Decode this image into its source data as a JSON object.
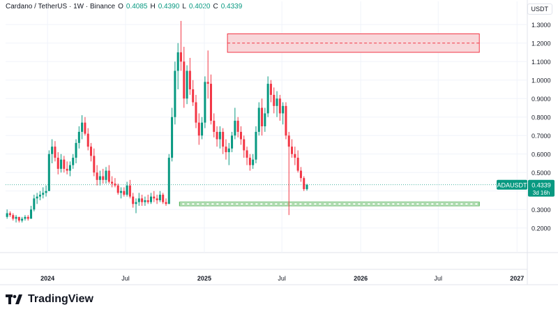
{
  "header": {
    "symbol": "Cardano / TetherUS · 1W · Binance",
    "open_label": "O",
    "open": "0.4085",
    "high_label": "H",
    "high": "0.4390",
    "low_label": "L",
    "low": "0.4020",
    "close_label": "C",
    "close": "0.4339"
  },
  "currency": "USDT",
  "price_tag": {
    "symbol": "ADAUSDT",
    "price": "0.4339",
    "countdown": "3d 16h"
  },
  "brand": "TradingView",
  "colors": {
    "up": "#089981",
    "down": "#f23645",
    "resistance_fill": "#f8d7da",
    "resistance_stroke": "#f23645",
    "support_fill": "#e6f4e6",
    "support_stroke": "#4caf50",
    "grid": "#f0f3fa",
    "axis_text": "#131722"
  },
  "chart_data": {
    "type": "candlestick",
    "y_axis": {
      "ticks": [
        "1.3000",
        "1.2000",
        "1.1000",
        "1.0000",
        "0.9000",
        "0.8000",
        "0.7000",
        "0.6000",
        "0.5000",
        "0.4000",
        "0.3000",
        "0.2000"
      ],
      "range": [
        0.15,
        1.35
      ]
    },
    "x_axis": {
      "ticks": [
        "2024",
        "Jul",
        "2025",
        "Jul",
        "2026",
        "Jul",
        "2027"
      ],
      "tick_dates": [
        "2024-01-01",
        "2024-07-01",
        "2025-01-01",
        "2025-07-01",
        "2026-01-01",
        "2026-07-01",
        "2027-01-01"
      ],
      "range": [
        "2023-09-25",
        "2027-01-25"
      ]
    },
    "zones": [
      {
        "name": "resistance",
        "from": "2025-02-24",
        "to": "2026-10-05",
        "low": 1.15,
        "high": 1.25,
        "mid": 1.2
      },
      {
        "name": "support",
        "from": "2024-11-04",
        "to": "2026-10-05",
        "low": 0.32,
        "high": 0.34,
        "mid": 0.33
      }
    ],
    "last_price": 0.4339,
    "start_date": "2023-09-25",
    "interval_days": 7,
    "candles": [
      [
        0.26,
        0.3,
        0.25,
        0.28
      ],
      [
        0.28,
        0.29,
        0.26,
        0.27
      ],
      [
        0.27,
        0.28,
        0.24,
        0.25
      ],
      [
        0.25,
        0.27,
        0.23,
        0.26
      ],
      [
        0.26,
        0.26,
        0.23,
        0.24
      ],
      [
        0.24,
        0.26,
        0.23,
        0.25
      ],
      [
        0.25,
        0.27,
        0.24,
        0.26
      ],
      [
        0.26,
        0.27,
        0.24,
        0.25
      ],
      [
        0.25,
        0.32,
        0.25,
        0.3
      ],
      [
        0.3,
        0.38,
        0.29,
        0.36
      ],
      [
        0.36,
        0.39,
        0.33,
        0.37
      ],
      [
        0.37,
        0.4,
        0.35,
        0.38
      ],
      [
        0.38,
        0.42,
        0.36,
        0.39
      ],
      [
        0.39,
        0.43,
        0.37,
        0.4
      ],
      [
        0.4,
        0.62,
        0.4,
        0.6
      ],
      [
        0.6,
        0.68,
        0.55,
        0.64
      ],
      [
        0.64,
        0.67,
        0.56,
        0.58
      ],
      [
        0.58,
        0.61,
        0.49,
        0.52
      ],
      [
        0.52,
        0.6,
        0.5,
        0.57
      ],
      [
        0.57,
        0.59,
        0.5,
        0.52
      ],
      [
        0.52,
        0.56,
        0.49,
        0.51
      ],
      [
        0.51,
        0.56,
        0.48,
        0.54
      ],
      [
        0.54,
        0.6,
        0.52,
        0.58
      ],
      [
        0.58,
        0.68,
        0.55,
        0.66
      ],
      [
        0.66,
        0.75,
        0.63,
        0.72
      ],
      [
        0.72,
        0.81,
        0.68,
        0.77
      ],
      [
        0.77,
        0.8,
        0.7,
        0.71
      ],
      [
        0.71,
        0.74,
        0.62,
        0.64
      ],
      [
        0.64,
        0.66,
        0.56,
        0.59
      ],
      [
        0.59,
        0.63,
        0.48,
        0.5
      ],
      [
        0.5,
        0.54,
        0.43,
        0.46
      ],
      [
        0.46,
        0.51,
        0.43,
        0.48
      ],
      [
        0.48,
        0.52,
        0.44,
        0.46
      ],
      [
        0.46,
        0.53,
        0.44,
        0.51
      ],
      [
        0.51,
        0.54,
        0.44,
        0.45
      ],
      [
        0.45,
        0.48,
        0.42,
        0.44
      ],
      [
        0.44,
        0.47,
        0.42,
        0.43
      ],
      [
        0.43,
        0.44,
        0.38,
        0.39
      ],
      [
        0.39,
        0.42,
        0.36,
        0.4
      ],
      [
        0.4,
        0.42,
        0.37,
        0.38
      ],
      [
        0.38,
        0.45,
        0.37,
        0.43
      ],
      [
        0.43,
        0.46,
        0.36,
        0.37
      ],
      [
        0.37,
        0.39,
        0.31,
        0.33
      ],
      [
        0.33,
        0.36,
        0.28,
        0.34
      ],
      [
        0.34,
        0.39,
        0.32,
        0.36
      ],
      [
        0.36,
        0.38,
        0.32,
        0.34
      ],
      [
        0.34,
        0.37,
        0.32,
        0.35
      ],
      [
        0.35,
        0.38,
        0.33,
        0.34
      ],
      [
        0.34,
        0.39,
        0.33,
        0.37
      ],
      [
        0.37,
        0.4,
        0.34,
        0.36
      ],
      [
        0.36,
        0.38,
        0.33,
        0.35
      ],
      [
        0.35,
        0.4,
        0.34,
        0.38
      ],
      [
        0.38,
        0.39,
        0.33,
        0.34
      ],
      [
        0.34,
        0.36,
        0.32,
        0.33
      ],
      [
        0.33,
        0.6,
        0.33,
        0.58
      ],
      [
        0.58,
        0.85,
        0.56,
        0.8
      ],
      [
        0.8,
        1.1,
        0.76,
        1.05
      ],
      [
        1.05,
        1.2,
        0.95,
        1.15
      ],
      [
        1.15,
        1.32,
        1.05,
        1.1
      ],
      [
        1.1,
        1.18,
        0.85,
        0.9
      ],
      [
        0.9,
        1.08,
        0.87,
        1.05
      ],
      [
        1.05,
        1.12,
        0.92,
        0.95
      ],
      [
        0.95,
        1.0,
        0.86,
        0.88
      ],
      [
        0.88,
        0.92,
        0.74,
        0.77
      ],
      [
        0.77,
        0.82,
        0.65,
        0.7
      ],
      [
        0.7,
        0.8,
        0.68,
        0.77
      ],
      [
        0.77,
        1.02,
        0.74,
        0.99
      ],
      [
        0.99,
        1.16,
        0.9,
        0.98
      ],
      [
        0.98,
        1.03,
        0.76,
        0.78
      ],
      [
        0.78,
        0.82,
        0.69,
        0.72
      ],
      [
        0.72,
        0.75,
        0.64,
        0.68
      ],
      [
        0.68,
        0.75,
        0.63,
        0.72
      ],
      [
        0.72,
        0.74,
        0.6,
        0.64
      ],
      [
        0.64,
        0.68,
        0.57,
        0.61
      ],
      [
        0.61,
        0.66,
        0.54,
        0.63
      ],
      [
        0.63,
        0.72,
        0.61,
        0.7
      ],
      [
        0.7,
        0.85,
        0.68,
        0.78
      ],
      [
        0.78,
        0.8,
        0.69,
        0.72
      ],
      [
        0.72,
        0.75,
        0.65,
        0.68
      ],
      [
        0.68,
        0.7,
        0.58,
        0.62
      ],
      [
        0.62,
        0.64,
        0.54,
        0.58
      ],
      [
        0.58,
        0.6,
        0.51,
        0.54
      ],
      [
        0.54,
        0.6,
        0.52,
        0.57
      ],
      [
        0.57,
        0.75,
        0.55,
        0.72
      ],
      [
        0.72,
        0.88,
        0.7,
        0.85
      ],
      [
        0.85,
        0.9,
        0.7,
        0.75
      ],
      [
        0.75,
        0.85,
        0.72,
        0.82
      ],
      [
        0.82,
        1.02,
        0.8,
        0.98
      ],
      [
        0.98,
        1.0,
        0.88,
        0.92
      ],
      [
        0.92,
        0.96,
        0.82,
        0.86
      ],
      [
        0.86,
        0.94,
        0.8,
        0.9
      ],
      [
        0.9,
        0.92,
        0.78,
        0.82
      ],
      [
        0.82,
        0.88,
        0.76,
        0.86
      ],
      [
        0.86,
        0.88,
        0.68,
        0.7
      ],
      [
        0.7,
        0.72,
        0.27,
        0.64
      ],
      [
        0.64,
        0.68,
        0.58,
        0.6
      ],
      [
        0.6,
        0.64,
        0.54,
        0.58
      ],
      [
        0.58,
        0.62,
        0.5,
        0.51
      ],
      [
        0.51,
        0.53,
        0.45,
        0.47
      ],
      [
        0.47,
        0.48,
        0.4,
        0.41
      ],
      [
        0.41,
        0.439,
        0.402,
        0.4339
      ]
    ]
  }
}
